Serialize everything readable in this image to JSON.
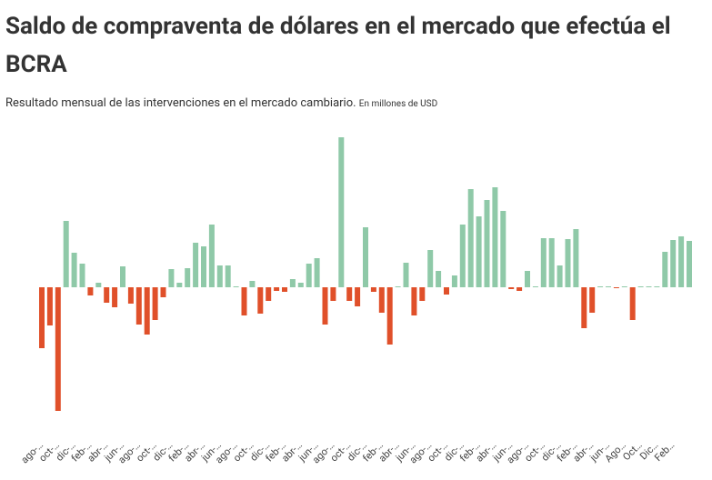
{
  "chart_data": {
    "type": "bar",
    "title": "Saldo de compraventa de dólares en el mercado que efectúa el BCRA",
    "subtitle": "Resultado  mensual de las intervenciones en el mercado cambiario.",
    "unit_note": "En millones de USD",
    "positive_color": "#8fc9a8",
    "negative_color": "#e0502a",
    "categories": [
      "ago-…",
      null,
      "oct-…",
      null,
      "dic-…",
      null,
      "feb-…",
      null,
      "abr-…",
      null,
      "jun-…",
      null,
      "ago-…",
      null,
      "oct-…",
      null,
      "dic-…",
      null,
      "feb-…",
      null,
      "abr-…",
      null,
      "jun-…",
      null,
      "ago-…",
      null,
      "oct-…",
      null,
      "dic-…",
      null,
      "feb-…",
      null,
      "abr-…",
      null,
      "jun-…",
      null,
      "ago-…",
      null,
      "oct-…",
      null,
      "dic-…",
      null,
      "feb-…",
      null,
      "abr-…",
      null,
      "jun-…",
      null,
      "ago-…",
      null,
      "oct-…",
      null,
      "dic-…",
      null,
      "feb-…",
      null,
      "abr-…",
      null,
      "jun-…",
      null,
      "ago-…",
      null,
      "oct-…",
      null,
      "dic-…",
      null,
      "feb-…",
      null,
      "abr-…",
      null,
      "jun-…",
      null,
      "Ago…",
      null,
      "Oct…",
      null,
      "Dic…",
      null,
      "Feb…",
      null,
      null
    ],
    "values": [
      -1340,
      -840,
      -2720,
      1460,
      760,
      520,
      -180,
      100,
      -340,
      -440,
      460,
      -360,
      -820,
      -1040,
      -720,
      -220,
      400,
      100,
      420,
      980,
      900,
      1380,
      480,
      480,
      20,
      -620,
      140,
      -580,
      -300,
      -80,
      -100,
      180,
      100,
      520,
      640,
      -820,
      -300,
      3300,
      -300,
      -420,
      1320,
      -100,
      -560,
      -1260,
      20,
      540,
      -620,
      -300,
      820,
      360,
      -160,
      260,
      1380,
      2160,
      1560,
      1920,
      2200,
      1680,
      -40,
      -80,
      360,
      20,
      1080,
      1080,
      480,
      1060,
      1280,
      -900,
      -560,
      20,
      20,
      -20,
      20,
      -720,
      20,
      20,
      20,
      780,
      1040,
      1120,
      1020
    ]
  }
}
